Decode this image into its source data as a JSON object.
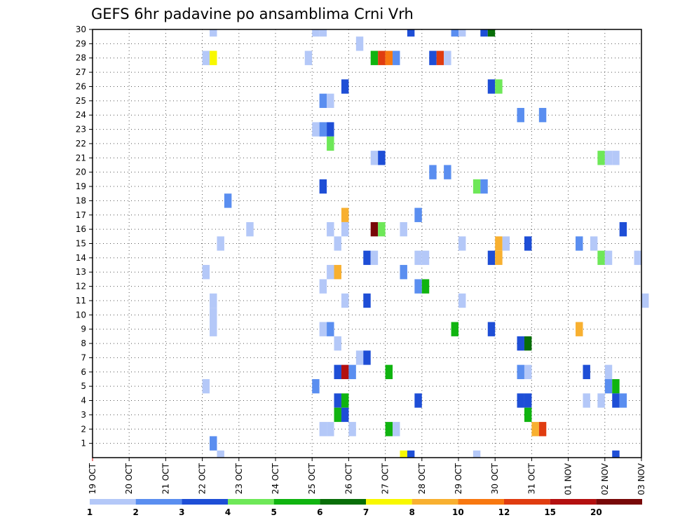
{
  "chart_data": {
    "type": "heatmap",
    "title": "GEFS 6hr padavine po ansamblima Crni Vrh",
    "x_tick_labels": [
      "19 OCT",
      "20 OCT",
      "21 OCT",
      "22 OCT",
      "23 OCT",
      "24 OCT",
      "25 OCT",
      "26 OCT",
      "27 OCT",
      "28 OCT",
      "29 OCT",
      "30 OCT",
      "31 OCT",
      "01 NOV",
      "02 NOV",
      "03 NOV"
    ],
    "y_tick_labels": [
      "1",
      "2",
      "3",
      "4",
      "5",
      "6",
      "7",
      "8",
      "9",
      "10",
      "11",
      "12",
      "13",
      "14",
      "15",
      "16",
      "17",
      "18",
      "19",
      "20",
      "21",
      "22",
      "23",
      "24",
      "25",
      "26",
      "27",
      "28",
      "29",
      "30"
    ],
    "x_range_days": [
      0,
      15
    ],
    "y_range": [
      0,
      30
    ],
    "grid": true,
    "colorbar_labels": [
      "1",
      "2",
      "3",
      "4",
      "5",
      "6",
      "7",
      "8",
      "10",
      "12",
      "15",
      "20"
    ],
    "colors": [
      "#b4c8f8",
      "#5a8ef0",
      "#1e4ed6",
      "#6ee858",
      "#10b410",
      "#086e08",
      "#f8f800",
      "#f8b030",
      "#f87810",
      "#e03c10",
      "#b41010",
      "#780808"
    ],
    "cells": [
      {
        "m": 30,
        "d": 3.2,
        "c": 1
      },
      {
        "m": 30,
        "d": 6.0,
        "c": 1
      },
      {
        "m": 30,
        "d": 6.2,
        "c": 1
      },
      {
        "m": 30,
        "d": 8.6,
        "c": 3
      },
      {
        "m": 30,
        "d": 9.8,
        "c": 2
      },
      {
        "m": 30,
        "d": 10.0,
        "c": 1
      },
      {
        "m": 30,
        "d": 10.6,
        "c": 3
      },
      {
        "m": 30,
        "d": 10.8,
        "c": 6
      },
      {
        "m": 29,
        "d": 7.2,
        "c": 1
      },
      {
        "m": 28,
        "d": 3.0,
        "c": 1
      },
      {
        "m": 28,
        "d": 3.2,
        "c": 7
      },
      {
        "m": 28,
        "d": 5.8,
        "c": 1
      },
      {
        "m": 28,
        "d": 7.6,
        "c": 5
      },
      {
        "m": 28,
        "d": 7.8,
        "c": 10
      },
      {
        "m": 28,
        "d": 8.0,
        "c": 9
      },
      {
        "m": 28,
        "d": 8.2,
        "c": 2
      },
      {
        "m": 28,
        "d": 9.2,
        "c": 3
      },
      {
        "m": 28,
        "d": 9.4,
        "c": 10
      },
      {
        "m": 28,
        "d": 9.6,
        "c": 1
      },
      {
        "m": 26,
        "d": 6.8,
        "c": 3
      },
      {
        "m": 26,
        "d": 10.8,
        "c": 3
      },
      {
        "m": 26,
        "d": 11.0,
        "c": 4
      },
      {
        "m": 25,
        "d": 6.2,
        "c": 2
      },
      {
        "m": 25,
        "d": 6.4,
        "c": 1
      },
      {
        "m": 24,
        "d": 11.6,
        "c": 2
      },
      {
        "m": 24,
        "d": 12.2,
        "c": 2
      },
      {
        "m": 23,
        "d": 6.0,
        "c": 1
      },
      {
        "m": 23,
        "d": 6.2,
        "c": 2
      },
      {
        "m": 23,
        "d": 6.4,
        "c": 3
      },
      {
        "m": 22,
        "d": 6.4,
        "c": 4
      },
      {
        "m": 21,
        "d": 7.6,
        "c": 1
      },
      {
        "m": 21,
        "d": 7.8,
        "c": 3
      },
      {
        "m": 21,
        "d": 13.8,
        "c": 4
      },
      {
        "m": 21,
        "d": 14.0,
        "c": 1
      },
      {
        "m": 21,
        "d": 14.2,
        "c": 1
      },
      {
        "m": 20,
        "d": 9.2,
        "c": 2
      },
      {
        "m": 20,
        "d": 9.6,
        "c": 2
      },
      {
        "m": 19,
        "d": 6.2,
        "c": 3
      },
      {
        "m": 19,
        "d": 10.4,
        "c": 4
      },
      {
        "m": 19,
        "d": 10.6,
        "c": 2
      },
      {
        "m": 18,
        "d": 3.6,
        "c": 2
      },
      {
        "m": 17,
        "d": 6.8,
        "c": 8
      },
      {
        "m": 17,
        "d": 8.8,
        "c": 2
      },
      {
        "m": 16,
        "d": 4.2,
        "c": 1
      },
      {
        "m": 16,
        "d": 6.4,
        "c": 1
      },
      {
        "m": 16,
        "d": 6.8,
        "c": 1
      },
      {
        "m": 16,
        "d": 7.6,
        "c": 12
      },
      {
        "m": 16,
        "d": 7.8,
        "c": 4
      },
      {
        "m": 16,
        "d": 8.4,
        "c": 1
      },
      {
        "m": 16,
        "d": 14.4,
        "c": 3
      },
      {
        "m": 15,
        "d": 3.4,
        "c": 1
      },
      {
        "m": 15,
        "d": 6.6,
        "c": 1
      },
      {
        "m": 15,
        "d": 10.0,
        "c": 1
      },
      {
        "m": 15,
        "d": 11.0,
        "c": 8
      },
      {
        "m": 15,
        "d": 11.2,
        "c": 1
      },
      {
        "m": 15,
        "d": 11.8,
        "c": 3
      },
      {
        "m": 15,
        "d": 13.2,
        "c": 2
      },
      {
        "m": 15,
        "d": 13.6,
        "c": 1
      },
      {
        "m": 14,
        "d": 7.4,
        "c": 3
      },
      {
        "m": 14,
        "d": 7.6,
        "c": 1
      },
      {
        "m": 14,
        "d": 8.8,
        "c": 1
      },
      {
        "m": 14,
        "d": 9.0,
        "c": 1
      },
      {
        "m": 14,
        "d": 10.8,
        "c": 3
      },
      {
        "m": 14,
        "d": 11.0,
        "c": 8
      },
      {
        "m": 14,
        "d": 13.8,
        "c": 4
      },
      {
        "m": 14,
        "d": 14.0,
        "c": 1
      },
      {
        "m": 14,
        "d": 14.8,
        "c": 1
      },
      {
        "m": 13,
        "d": 3.0,
        "c": 1
      },
      {
        "m": 13,
        "d": 6.4,
        "c": 1
      },
      {
        "m": 13,
        "d": 6.6,
        "c": 8
      },
      {
        "m": 13,
        "d": 8.4,
        "c": 2
      },
      {
        "m": 12,
        "d": 6.2,
        "c": 1
      },
      {
        "m": 12,
        "d": 8.8,
        "c": 2
      },
      {
        "m": 12,
        "d": 9.0,
        "c": 5
      },
      {
        "m": 11,
        "d": 3.2,
        "c": 1
      },
      {
        "m": 11,
        "d": 6.8,
        "c": 1
      },
      {
        "m": 11,
        "d": 7.4,
        "c": 3
      },
      {
        "m": 11,
        "d": 10.0,
        "c": 1
      },
      {
        "m": 11,
        "d": 15.0,
        "c": 1
      },
      {
        "m": 10,
        "d": 3.2,
        "c": 1
      },
      {
        "m": 9,
        "d": 3.2,
        "c": 1
      },
      {
        "m": 9,
        "d": 6.2,
        "c": 1
      },
      {
        "m": 9,
        "d": 6.4,
        "c": 2
      },
      {
        "m": 9,
        "d": 9.8,
        "c": 5
      },
      {
        "m": 9,
        "d": 10.8,
        "c": 3
      },
      {
        "m": 9,
        "d": 13.2,
        "c": 8
      },
      {
        "m": 8,
        "d": 6.6,
        "c": 1
      },
      {
        "m": 8,
        "d": 11.6,
        "c": 3
      },
      {
        "m": 8,
        "d": 11.8,
        "c": 6
      },
      {
        "m": 7,
        "d": 7.2,
        "c": 1
      },
      {
        "m": 7,
        "d": 7.4,
        "c": 3
      },
      {
        "m": 6,
        "d": 6.6,
        "c": 3
      },
      {
        "m": 6,
        "d": 6.8,
        "c": 11
      },
      {
        "m": 6,
        "d": 7.0,
        "c": 2
      },
      {
        "m": 6,
        "d": 8.0,
        "c": 5
      },
      {
        "m": 6,
        "d": 11.6,
        "c": 2
      },
      {
        "m": 6,
        "d": 11.8,
        "c": 1
      },
      {
        "m": 6,
        "d": 13.4,
        "c": 3
      },
      {
        "m": 6,
        "d": 14.0,
        "c": 1
      },
      {
        "m": 5,
        "d": 3.0,
        "c": 1
      },
      {
        "m": 5,
        "d": 6.0,
        "c": 2
      },
      {
        "m": 5,
        "d": 14.0,
        "c": 2
      },
      {
        "m": 5,
        "d": 14.2,
        "c": 5
      },
      {
        "m": 4,
        "d": 6.6,
        "c": 3
      },
      {
        "m": 4,
        "d": 6.8,
        "c": 5
      },
      {
        "m": 4,
        "d": 8.8,
        "c": 3
      },
      {
        "m": 4,
        "d": 11.6,
        "c": 3
      },
      {
        "m": 4,
        "d": 11.8,
        "c": 3
      },
      {
        "m": 4,
        "d": 13.4,
        "c": 1
      },
      {
        "m": 4,
        "d": 13.8,
        "c": 1
      },
      {
        "m": 4,
        "d": 14.2,
        "c": 3
      },
      {
        "m": 4,
        "d": 14.4,
        "c": 2
      },
      {
        "m": 3,
        "d": 6.6,
        "c": 5
      },
      {
        "m": 3,
        "d": 6.8,
        "c": 3
      },
      {
        "m": 3,
        "d": 11.8,
        "c": 5
      },
      {
        "m": 2,
        "d": 6.2,
        "c": 1
      },
      {
        "m": 2,
        "d": 6.4,
        "c": 1
      },
      {
        "m": 2,
        "d": 7.0,
        "c": 1
      },
      {
        "m": 2,
        "d": 8.0,
        "c": 5
      },
      {
        "m": 2,
        "d": 8.2,
        "c": 1
      },
      {
        "m": 2,
        "d": 12.0,
        "c": 8
      },
      {
        "m": 2,
        "d": 12.2,
        "c": 10
      },
      {
        "m": 1,
        "d": 3.2,
        "c": 2
      },
      {
        "m": 0,
        "d": 3.4,
        "c": 1
      },
      {
        "m": 0,
        "d": 8.4,
        "c": 7
      },
      {
        "m": 0,
        "d": 8.6,
        "c": 3
      },
      {
        "m": 0,
        "d": 10.4,
        "c": 1
      },
      {
        "m": 0,
        "d": 14.2,
        "c": 3
      }
    ]
  }
}
